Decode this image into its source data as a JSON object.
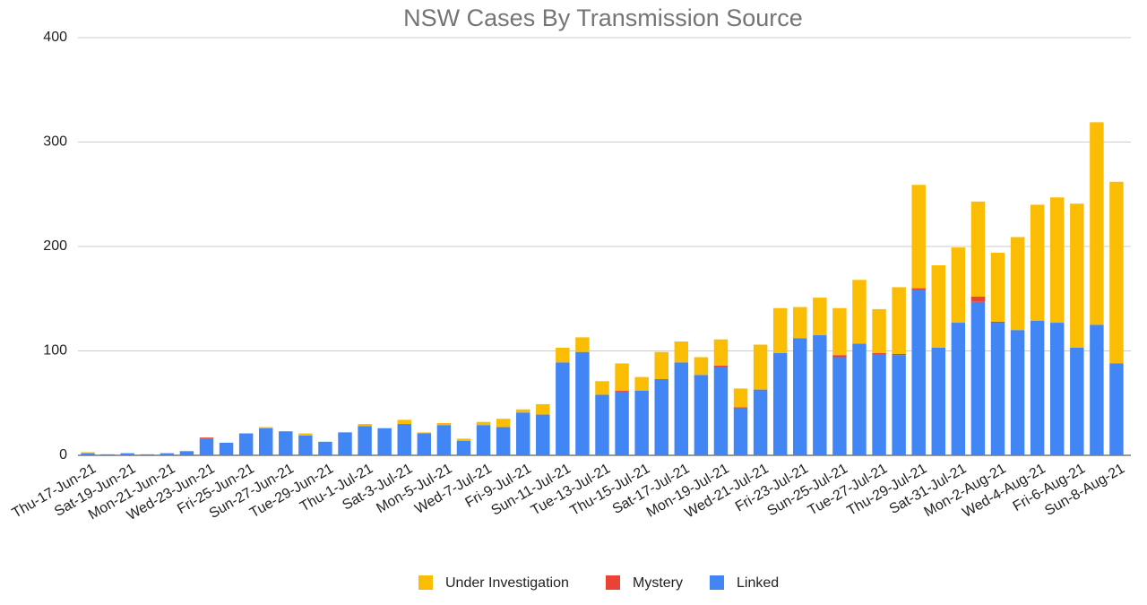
{
  "chart_data": {
    "type": "stacked_bar",
    "title": "NSW Cases By Transmission Source",
    "categories": [
      "Thu-17-Jun-21",
      null,
      "Sat-19-Jun-21",
      null,
      "Mon-21-Jun-21",
      null,
      "Wed-23-Jun-21",
      null,
      "Fri-25-Jun-21",
      null,
      "Sun-27-Jun-21",
      null,
      "Tue-29-Jun-21",
      null,
      "Thu-1-Jul-21",
      null,
      "Sat-3-Jul-21",
      null,
      "Mon-5-Jul-21",
      null,
      "Wed-7-Jul-21",
      null,
      "Fri-9-Jul-21",
      null,
      "Sun-11-Jul-21",
      null,
      "Tue-13-Jul-21",
      null,
      "Thu-15-Jul-21",
      null,
      "Sat-17-Jul-21",
      null,
      "Mon-19-Jul-21",
      null,
      "Wed-21-Jul-21",
      null,
      "Fri-23-Jul-21",
      null,
      "Sun-25-Jul-21",
      null,
      "Tue-27-Jul-21",
      null,
      "Thu-29-Jul-21",
      null,
      "Sat-31-Jul-21",
      null,
      "Mon-2-Aug-21",
      null,
      "Wed-4-Aug-21",
      null,
      "Fri-6-Aug-21",
      null,
      "Sun-8-Aug-21"
    ],
    "series": [
      {
        "name": "Under Investigation",
        "color": "#fbbc04",
        "values": [
          1,
          0,
          0,
          0,
          0,
          0,
          0,
          0,
          0,
          1,
          0,
          2,
          0,
          0,
          2,
          0,
          4,
          1,
          2,
          2,
          3,
          8,
          3,
          10,
          14,
          14,
          13,
          26,
          13,
          26,
          20,
          17,
          25,
          18,
          43,
          43,
          30,
          36,
          45,
          61,
          42,
          64,
          99,
          79,
          72,
          91,
          66,
          89,
          111,
          120,
          138,
          194,
          174
        ]
      },
      {
        "name": "Mystery",
        "color": "#ea4335",
        "values": [
          0,
          0,
          0,
          0,
          0,
          0,
          1,
          0,
          0,
          0,
          0,
          0,
          0,
          0,
          0,
          0,
          0,
          0,
          0,
          0,
          0,
          0,
          0,
          0,
          0,
          0,
          0,
          1,
          0,
          0,
          0,
          0,
          1,
          1,
          0,
          0,
          0,
          0,
          2,
          0,
          1,
          1,
          2,
          0,
          0,
          5,
          1,
          0,
          0,
          0,
          0,
          0,
          0
        ]
      },
      {
        "name": "Linked",
        "color": "#4285f4",
        "values": [
          2,
          1,
          2,
          1,
          2,
          4,
          16,
          12,
          21,
          26,
          23,
          19,
          13,
          22,
          28,
          26,
          30,
          21,
          29,
          14,
          29,
          27,
          41,
          39,
          89,
          99,
          58,
          61,
          62,
          73,
          89,
          77,
          85,
          45,
          63,
          98,
          112,
          115,
          94,
          107,
          97,
          96,
          158,
          103,
          127,
          147,
          127,
          120,
          129,
          127,
          103,
          125,
          88
        ]
      }
    ],
    "ylim": [
      0,
      400
    ],
    "yticks": [
      0,
      100,
      200,
      300,
      400
    ],
    "grid": true
  }
}
